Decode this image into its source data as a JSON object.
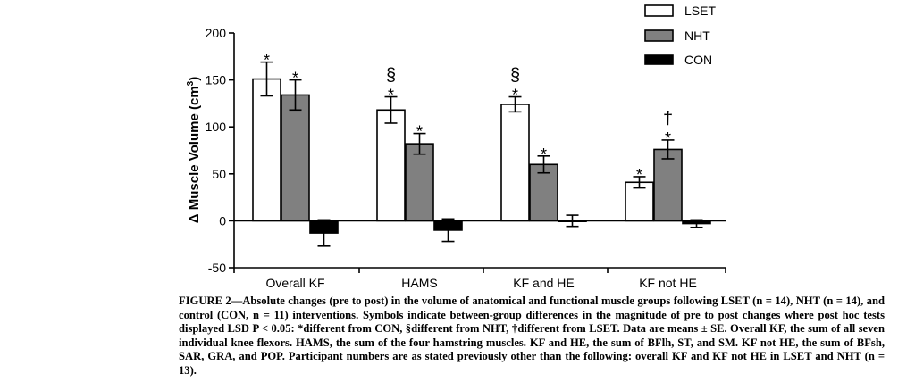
{
  "chart_data": {
    "type": "bar",
    "categories": [
      "Overall KF",
      "HAMS",
      "KF and HE",
      "KF not HE"
    ],
    "ylabel": "Δ Muscle Volume (cm³)",
    "ylabel_base": "Δ Muscle Volume (cm",
    "ylabel_sup": "3",
    "ylabel_end": ")",
    "ylim": [
      -50,
      200
    ],
    "yticks": [
      -50,
      0,
      50,
      100,
      150,
      200
    ],
    "ytick_labels": [
      "-50",
      "0",
      "50",
      "100",
      "150",
      "200"
    ],
    "legend_position": "top-right",
    "error_bars": "mean ± SE",
    "series": [
      {
        "name": "LSET",
        "color": "#ffffff",
        "values": [
          151,
          118,
          124,
          41
        ],
        "errors": [
          18,
          14,
          8,
          6
        ]
      },
      {
        "name": "NHT",
        "color": "#808080",
        "values": [
          134,
          82,
          60,
          76
        ],
        "errors": [
          16,
          11,
          9,
          10
        ]
      },
      {
        "name": "CON",
        "color": "#000000",
        "values": [
          -13,
          -10,
          0,
          -3
        ],
        "errors": [
          14,
          12,
          6,
          4
        ]
      }
    ],
    "annotations": [
      {
        "series": 0,
        "category": 0,
        "symbols": [
          "*"
        ]
      },
      {
        "series": 1,
        "category": 0,
        "symbols": [
          "*"
        ]
      },
      {
        "series": 0,
        "category": 1,
        "symbols": [
          "*",
          "§"
        ]
      },
      {
        "series": 1,
        "category": 1,
        "symbols": [
          "*"
        ]
      },
      {
        "series": 0,
        "category": 2,
        "symbols": [
          "*",
          "§"
        ]
      },
      {
        "series": 1,
        "category": 2,
        "symbols": [
          "*"
        ]
      },
      {
        "series": 0,
        "category": 3,
        "symbols": [
          "*"
        ]
      },
      {
        "series": 1,
        "category": 3,
        "symbols": [
          "*",
          "†"
        ]
      }
    ]
  },
  "caption": {
    "text": "FIGURE 2—Absolute changes (pre to post) in the volume of anatomical and functional muscle groups following LSET (n = 14), NHT (n = 14), and control (CON, n = 11) interventions. Symbols indicate between-group differences in the magnitude of pre to post changes where post hoc tests displayed LSD P < 0.05: *different from CON, §different from NHT, †different from LSET. Data are means ± SE. Overall KF, the sum of all seven individual knee flexors. HAMS, the sum of the four hamstring muscles. KF and HE, the sum of BFlh, ST, and SM. KF not HE, the sum of BFsh, SAR, GRA, and POP. Participant numbers are as stated previously other than the following: overall KF and KF not HE in LSET and NHT (n = 13)."
  }
}
